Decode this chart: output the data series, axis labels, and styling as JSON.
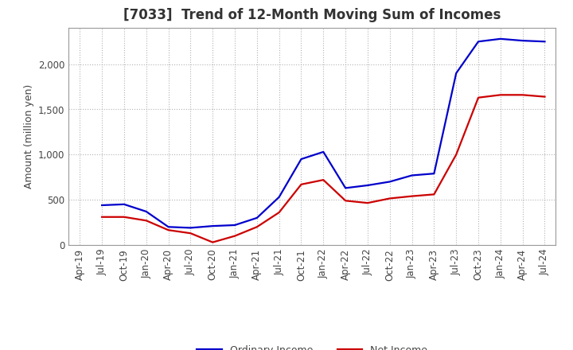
{
  "title": "[7033]  Trend of 12-Month Moving Sum of Incomes",
  "ylabel": "Amount (million yen)",
  "background_color": "#ffffff",
  "plot_bg_color": "#ffffff",
  "grid_color": "#aaaaaa",
  "x_labels": [
    "Apr-19",
    "Jul-19",
    "Oct-19",
    "Jan-20",
    "Apr-20",
    "Jul-20",
    "Oct-20",
    "Jan-21",
    "Apr-21",
    "Jul-21",
    "Oct-21",
    "Jan-22",
    "Apr-22",
    "Jul-22",
    "Oct-22",
    "Jan-23",
    "Apr-23",
    "Jul-23",
    "Oct-23",
    "Jan-24",
    "Apr-24",
    "Jul-24"
  ],
  "ordinary_income": [
    null,
    440,
    450,
    370,
    200,
    190,
    210,
    220,
    300,
    530,
    950,
    1030,
    630,
    660,
    700,
    770,
    790,
    1900,
    2250,
    2280,
    2260,
    2250
  ],
  "net_income": [
    null,
    310,
    310,
    270,
    165,
    130,
    30,
    100,
    200,
    360,
    670,
    720,
    490,
    465,
    515,
    540,
    560,
    1000,
    1630,
    1660,
    1660,
    1640
  ],
  "ordinary_color": "#0000cc",
  "net_color": "#cc0000",
  "ylim": [
    0,
    2400
  ],
  "yticks": [
    0,
    500,
    1000,
    1500,
    2000
  ],
  "line_width": 1.6,
  "title_fontsize": 12,
  "title_color": "#333333",
  "label_fontsize": 9,
  "tick_fontsize": 8.5,
  "legend_fontsize": 9
}
